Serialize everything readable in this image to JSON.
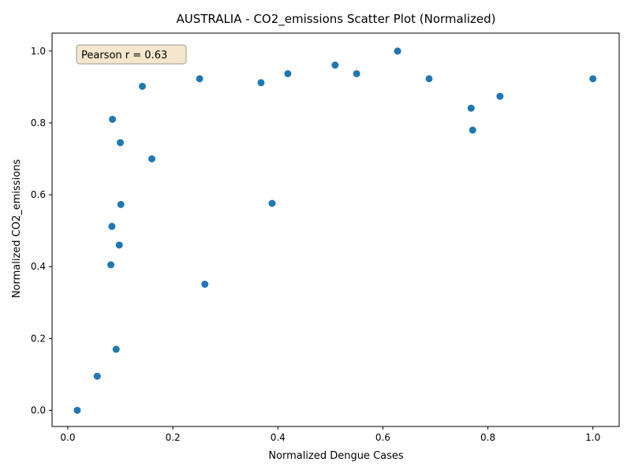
{
  "chart_data": {
    "type": "scatter",
    "title": "AUSTRALIA - CO2_emissions Scatter Plot (Normalized)",
    "xlabel": "Normalized Dengue Cases",
    "ylabel": "Normalized CO2_emissions",
    "xlim": [
      -0.03,
      1.05
    ],
    "ylim": [
      -0.045,
      1.05
    ],
    "xticks": [
      0.0,
      0.2,
      0.4,
      0.6,
      0.8,
      1.0
    ],
    "xtick_labels": [
      "0.0",
      "0.2",
      "0.4",
      "0.6",
      "0.8",
      "1.0"
    ],
    "yticks": [
      0.0,
      0.2,
      0.4,
      0.6,
      0.8,
      1.0
    ],
    "ytick_labels": [
      "0.0",
      "0.2",
      "0.4",
      "0.6",
      "0.8",
      "1.0"
    ],
    "grid": false,
    "marker_color": "#1f77b4",
    "annotation": {
      "text": "Pearson r = 0.63",
      "position": "top-left",
      "box_fill": "#f5e6cc",
      "box_stroke": "#999999"
    },
    "series": [
      {
        "points": [
          {
            "x": 0.018,
            "y": 0.0
          },
          {
            "x": 0.056,
            "y": 0.095
          },
          {
            "x": 0.092,
            "y": 0.17
          },
          {
            "x": 0.082,
            "y": 0.405
          },
          {
            "x": 0.098,
            "y": 0.46
          },
          {
            "x": 0.084,
            "y": 0.512
          },
          {
            "x": 0.101,
            "y": 0.573
          },
          {
            "x": 0.1,
            "y": 0.745
          },
          {
            "x": 0.085,
            "y": 0.81
          },
          {
            "x": 0.142,
            "y": 0.902
          },
          {
            "x": 0.16,
            "y": 0.7
          },
          {
            "x": 0.251,
            "y": 0.923
          },
          {
            "x": 0.261,
            "y": 0.351
          },
          {
            "x": 0.368,
            "y": 0.912
          },
          {
            "x": 0.389,
            "y": 0.576
          },
          {
            "x": 0.419,
            "y": 0.937
          },
          {
            "x": 0.509,
            "y": 0.961
          },
          {
            "x": 0.55,
            "y": 0.937
          },
          {
            "x": 0.628,
            "y": 1.0
          },
          {
            "x": 0.688,
            "y": 0.923
          },
          {
            "x": 0.768,
            "y": 0.841
          },
          {
            "x": 0.771,
            "y": 0.78
          },
          {
            "x": 0.823,
            "y": 0.874
          },
          {
            "x": 1.0,
            "y": 0.923
          }
        ]
      }
    ]
  }
}
